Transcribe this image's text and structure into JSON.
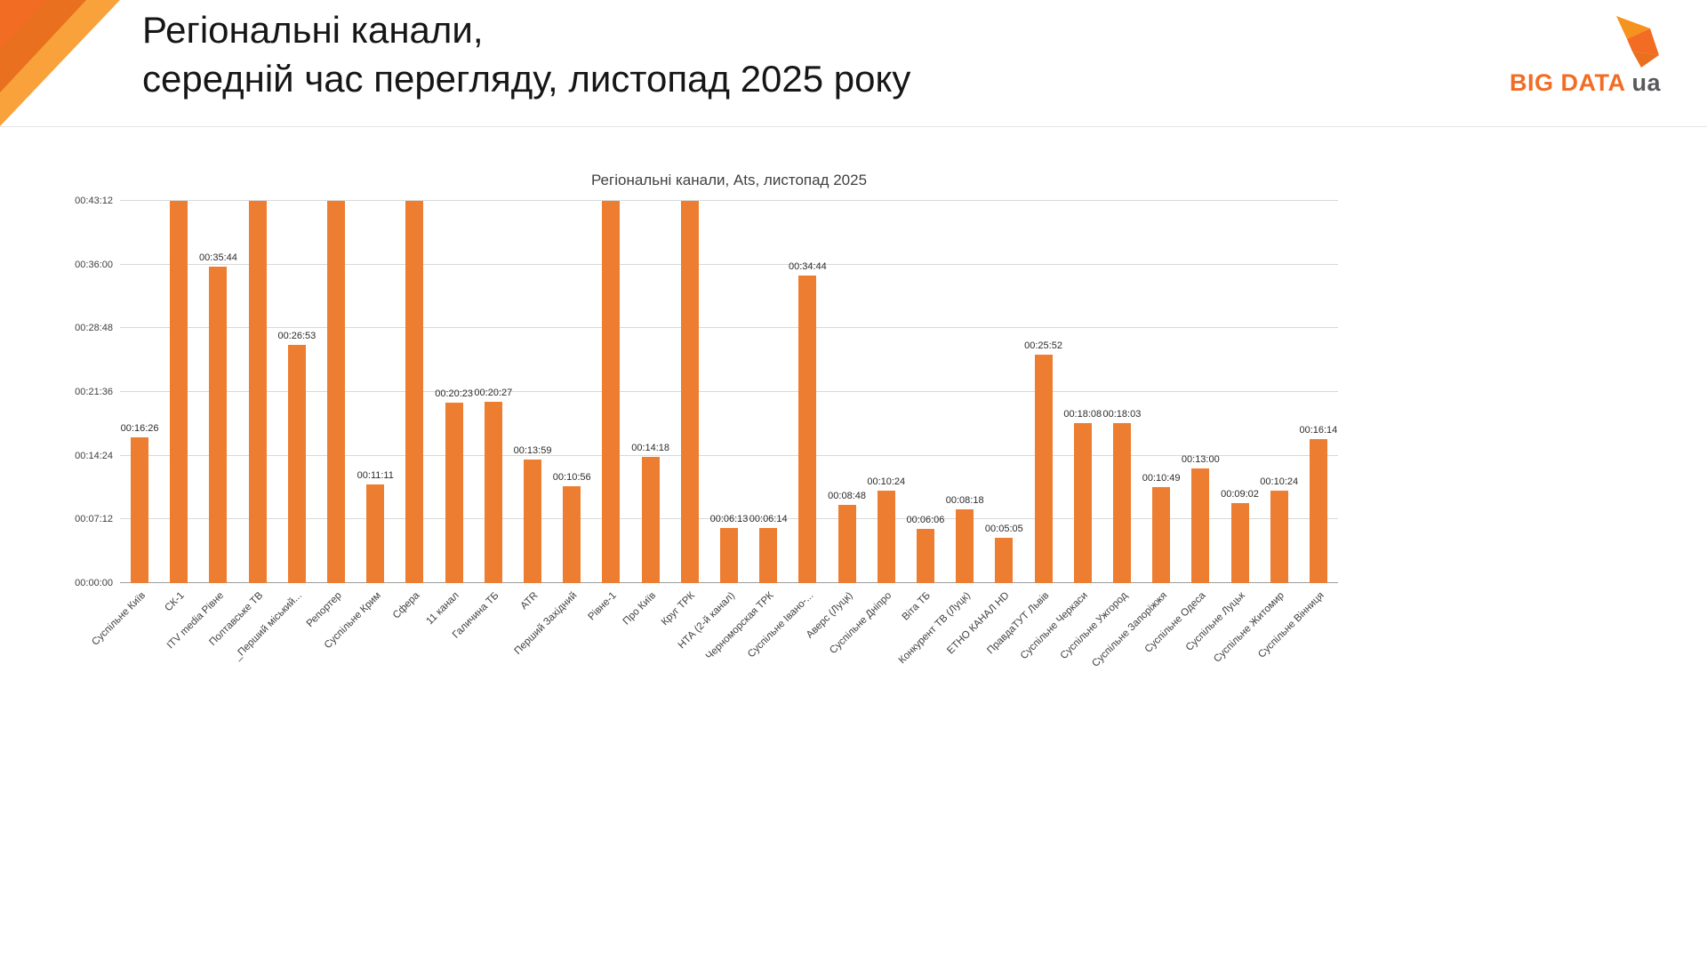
{
  "header": {
    "title_line1": "Регіональні канали,",
    "title_line2": "середній час перегляду, листопад 2025 року",
    "logo": {
      "text": "BIG DATA",
      "suffix": "ua"
    }
  },
  "colors": {
    "bar": "#ED7D31",
    "brand_orange": "#F26C23",
    "brand_orange_dark": "#E8701E",
    "brand_orange_light": "#F9A13A",
    "logo_gray": "#58595B"
  },
  "chart_data": {
    "type": "bar",
    "title": "Регіональні канали, Ats, листопад 2025",
    "xlabel": "",
    "ylabel": "",
    "legend": null,
    "grid": true,
    "y_axis": {
      "ticks": [
        "00:00:00",
        "00:07:12",
        "00:14:24",
        "00:21:36",
        "00:28:48",
        "00:36:00",
        "00:43:12"
      ],
      "tick_interval": "00:07:12",
      "max_seconds": 2592
    },
    "points": [
      {
        "name": "Суспільне Київ",
        "time": "00:16:26",
        "seconds": 986,
        "clipped": false
      },
      {
        "name": "СК-1",
        "time": null,
        "seconds": 2592,
        "clipped": true
      },
      {
        "name": "ITV media Рівне",
        "time": "00:35:44",
        "seconds": 2144,
        "clipped": false
      },
      {
        "name": "Полтавське ТВ",
        "time": null,
        "seconds": 2592,
        "clipped": true
      },
      {
        "name": "_Перший міський...",
        "time": "00:26:53",
        "seconds": 1613,
        "clipped": false
      },
      {
        "name": "Репортер",
        "time": null,
        "seconds": 2592,
        "clipped": true
      },
      {
        "name": "Суспільне Крим",
        "time": "00:11:11",
        "seconds": 671,
        "clipped": false
      },
      {
        "name": "Сфера",
        "time": null,
        "seconds": 2592,
        "clipped": true
      },
      {
        "name": "11 канал",
        "time": "00:20:23",
        "seconds": 1223,
        "clipped": false
      },
      {
        "name": "Галичина ТБ",
        "time": "00:20:27",
        "seconds": 1227,
        "clipped": false
      },
      {
        "name": "ATR",
        "time": "00:13:59",
        "seconds": 839,
        "clipped": false
      },
      {
        "name": "Перший Західний",
        "time": "00:10:56",
        "seconds": 656,
        "clipped": false
      },
      {
        "name": "Рівне-1",
        "time": null,
        "seconds": 2592,
        "clipped": true
      },
      {
        "name": "Про Київ",
        "time": "00:14:18",
        "seconds": 858,
        "clipped": false
      },
      {
        "name": "Круг ТРК",
        "time": null,
        "seconds": 2592,
        "clipped": true
      },
      {
        "name": "НТА (2-й канал)",
        "time": "00:06:13",
        "seconds": 373,
        "clipped": false
      },
      {
        "name": "Черноморская ТРК",
        "time": "00:06:14",
        "seconds": 374,
        "clipped": false
      },
      {
        "name": "Суспільне Івано-...",
        "time": "00:34:44",
        "seconds": 2084,
        "clipped": false
      },
      {
        "name": "Аверс (Луцк)",
        "time": "00:08:48",
        "seconds": 528,
        "clipped": false
      },
      {
        "name": "Суспільне Дніпро",
        "time": "00:10:24",
        "seconds": 624,
        "clipped": false
      },
      {
        "name": "Віта ТБ",
        "time": "00:06:06",
        "seconds": 366,
        "clipped": false
      },
      {
        "name": "Конкурент ТВ (Луцк)",
        "time": "00:08:18",
        "seconds": 498,
        "clipped": false
      },
      {
        "name": "ЕТНО КАНАЛ HD",
        "time": "00:05:05",
        "seconds": 305,
        "clipped": false
      },
      {
        "name": "ПравдаТУТ Львів",
        "time": "00:25:52",
        "seconds": 1552,
        "clipped": false
      },
      {
        "name": "Суспільне Черкаси",
        "time": "00:18:08",
        "seconds": 1088,
        "clipped": false
      },
      {
        "name": "Суспільне Ужгород",
        "time": "00:18:03",
        "seconds": 1083,
        "clipped": false
      },
      {
        "name": "Суспільне Запоріжжя",
        "time": "00:10:49",
        "seconds": 649,
        "clipped": false
      },
      {
        "name": "Суспільне Одеса",
        "time": "00:13:00",
        "seconds": 780,
        "clipped": false
      },
      {
        "name": "Суспільне Луцьк",
        "time": "00:09:02",
        "seconds": 542,
        "clipped": false
      },
      {
        "name": "Суспільне Житомир",
        "time": "00:10:24",
        "seconds": 624,
        "clipped": false
      },
      {
        "name": "Суспільне Вінниця",
        "time": "00:16:14",
        "seconds": 974,
        "clipped": false
      }
    ]
  }
}
